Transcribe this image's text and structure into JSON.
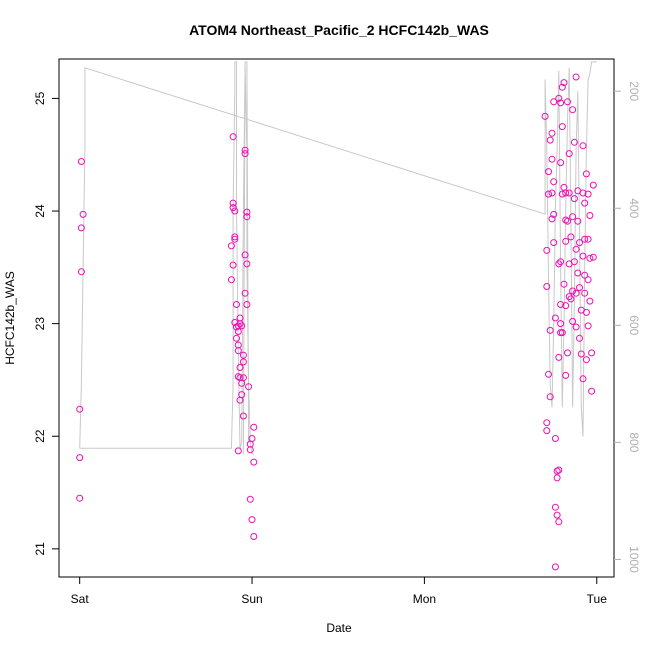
{
  "chart_data": {
    "type": "scatter",
    "title": "ATOM4 Northeast_Pacific_2 HCFC142b_WAS",
    "xlabel": "Date",
    "ylabel": "HCFC142b_WAS",
    "x_tick_labels": [
      "Sat",
      "Sun",
      "Mon",
      "Tue"
    ],
    "x_ticks_day": [
      0,
      1,
      2,
      3
    ],
    "xlim_day": [
      -0.12,
      3.1
    ],
    "ylim": [
      20.75,
      25.35
    ],
    "y_ticks": [
      21,
      22,
      23,
      24,
      25
    ],
    "right_axis": {
      "label_ticks": [
        200,
        400,
        600,
        800,
        1000
      ],
      "lim": [
        145,
        1030
      ],
      "color": "#b0b0b0"
    },
    "grid": false,
    "point_color": "#ee0fb4",
    "line_color": "#c8c8c8",
    "series": [
      {
        "kind": "points",
        "points": [
          [
            0.01,
            24.44
          ],
          [
            0.01,
            23.85
          ],
          [
            0.02,
            23.97
          ],
          [
            0.01,
            23.46
          ],
          [
            0.0,
            22.24
          ],
          [
            0.0,
            21.81
          ],
          [
            0.0,
            21.45
          ],
          [
            0.89,
            24.66
          ],
          [
            0.89,
            24.07
          ],
          [
            0.89,
            24.03
          ],
          [
            0.9,
            24.0
          ],
          [
            0.9,
            23.77
          ],
          [
            0.9,
            23.75
          ],
          [
            0.88,
            23.69
          ],
          [
            0.89,
            23.52
          ],
          [
            0.88,
            23.39
          ],
          [
            0.91,
            23.17
          ],
          [
            0.9,
            23.01
          ],
          [
            0.91,
            22.97
          ],
          [
            0.92,
            22.93
          ],
          [
            0.91,
            22.87
          ],
          [
            0.92,
            22.81
          ],
          [
            0.92,
            22.76
          ],
          [
            0.93,
            22.61
          ],
          [
            0.92,
            22.53
          ],
          [
            0.93,
            22.52
          ],
          [
            0.94,
            22.47
          ],
          [
            0.94,
            22.37
          ],
          [
            0.92,
            22.98
          ],
          [
            0.93,
            23.0
          ],
          [
            0.93,
            23.05
          ],
          [
            0.94,
            22.98
          ],
          [
            0.95,
            22.72
          ],
          [
            0.95,
            22.66
          ],
          [
            0.95,
            22.52
          ],
          [
            0.93,
            22.32
          ],
          [
            0.95,
            22.18
          ],
          [
            0.92,
            21.87
          ],
          [
            0.96,
            24.54
          ],
          [
            0.96,
            24.51
          ],
          [
            0.97,
            23.99
          ],
          [
            0.97,
            23.95
          ],
          [
            0.96,
            23.61
          ],
          [
            0.97,
            23.53
          ],
          [
            0.96,
            23.27
          ],
          [
            0.97,
            23.17
          ],
          [
            0.98,
            22.44
          ],
          [
            0.99,
            21.88
          ],
          [
            0.99,
            21.93
          ],
          [
            1.0,
            21.98
          ],
          [
            1.01,
            21.77
          ],
          [
            1.01,
            22.08
          ],
          [
            0.99,
            21.44
          ],
          [
            1.0,
            21.26
          ],
          [
            1.01,
            21.11
          ],
          [
            2.7,
            24.84
          ],
          [
            2.72,
            24.35
          ],
          [
            2.72,
            24.15
          ],
          [
            2.71,
            23.65
          ],
          [
            2.71,
            23.33
          ],
          [
            2.73,
            22.94
          ],
          [
            2.72,
            22.55
          ],
          [
            2.73,
            22.35
          ],
          [
            2.71,
            22.12
          ],
          [
            2.71,
            22.05
          ],
          [
            2.75,
            24.97
          ],
          [
            2.74,
            24.69
          ],
          [
            2.73,
            24.63
          ],
          [
            2.74,
            24.46
          ],
          [
            2.75,
            24.26
          ],
          [
            2.74,
            24.16
          ],
          [
            2.75,
            23.97
          ],
          [
            2.74,
            23.93
          ],
          [
            2.75,
            23.72
          ],
          [
            2.76,
            23.05
          ],
          [
            2.76,
            21.98
          ],
          [
            2.77,
            21.69
          ],
          [
            2.77,
            21.63
          ],
          [
            2.76,
            21.37
          ],
          [
            2.77,
            21.3
          ],
          [
            2.78,
            21.24
          ],
          [
            2.76,
            20.84
          ],
          [
            2.78,
            21.7
          ],
          [
            2.78,
            25.0
          ],
          [
            2.79,
            24.96
          ],
          [
            2.8,
            24.75
          ],
          [
            2.79,
            24.43
          ],
          [
            2.8,
            24.15
          ],
          [
            2.79,
            23.55
          ],
          [
            2.78,
            23.53
          ],
          [
            2.79,
            23.17
          ],
          [
            2.8,
            22.92
          ],
          [
            2.78,
            22.7
          ],
          [
            2.79,
            22.92
          ],
          [
            2.79,
            23.0
          ],
          [
            2.8,
            25.1
          ],
          [
            2.81,
            25.14
          ],
          [
            2.81,
            24.21
          ],
          [
            2.82,
            24.16
          ],
          [
            2.82,
            23.92
          ],
          [
            2.82,
            23.73
          ],
          [
            2.81,
            23.35
          ],
          [
            2.82,
            23.16
          ],
          [
            2.83,
            22.74
          ],
          [
            2.82,
            22.54
          ],
          [
            2.83,
            24.97
          ],
          [
            2.84,
            24.51
          ],
          [
            2.84,
            24.16
          ],
          [
            2.83,
            23.91
          ],
          [
            2.85,
            23.77
          ],
          [
            2.84,
            23.53
          ],
          [
            2.84,
            23.24
          ],
          [
            2.85,
            23.22
          ],
          [
            2.86,
            23.02
          ],
          [
            2.86,
            24.9
          ],
          [
            2.87,
            24.61
          ],
          [
            2.87,
            24.11
          ],
          [
            2.86,
            23.95
          ],
          [
            2.88,
            23.66
          ],
          [
            2.87,
            23.55
          ],
          [
            2.86,
            23.29
          ],
          [
            2.88,
            23.27
          ],
          [
            2.88,
            22.97
          ],
          [
            2.88,
            25.19
          ],
          [
            2.89,
            24.18
          ],
          [
            2.89,
            23.91
          ],
          [
            2.9,
            23.72
          ],
          [
            2.89,
            23.45
          ],
          [
            2.9,
            23.32
          ],
          [
            2.91,
            23.12
          ],
          [
            2.9,
            22.87
          ],
          [
            2.91,
            22.73
          ],
          [
            2.92,
            22.51
          ],
          [
            2.92,
            24.58
          ],
          [
            2.92,
            24.16
          ],
          [
            2.93,
            24.07
          ],
          [
            2.93,
            23.75
          ],
          [
            2.92,
            23.6
          ],
          [
            2.93,
            23.43
          ],
          [
            2.93,
            23.27
          ],
          [
            2.94,
            23.1
          ],
          [
            2.94,
            22.68
          ],
          [
            2.94,
            24.33
          ],
          [
            2.95,
            24.15
          ],
          [
            2.96,
            23.96
          ],
          [
            2.95,
            23.75
          ],
          [
            2.96,
            23.58
          ],
          [
            2.95,
            23.39
          ],
          [
            2.96,
            23.2
          ],
          [
            2.95,
            22.98
          ],
          [
            2.97,
            22.74
          ],
          [
            2.97,
            22.4
          ],
          [
            2.98,
            24.23
          ],
          [
            2.98,
            23.59
          ]
        ]
      },
      {
        "kind": "line",
        "y_axis": "right",
        "points": [
          [
            0.0,
            810
          ],
          [
            0.01,
            700
          ],
          [
            0.02,
            500
          ],
          [
            0.03,
            300
          ],
          [
            0.03,
            160
          ],
          [
            2.7,
            410
          ],
          [
            2.7,
            180
          ],
          [
            2.71,
            300
          ],
          [
            2.72,
            520
          ],
          [
            2.73,
            700
          ],
          [
            2.74,
            740
          ],
          [
            2.75,
            600
          ],
          [
            2.76,
            400
          ],
          [
            2.77,
            300
          ],
          [
            2.78,
            165
          ],
          [
            2.79,
            500
          ],
          [
            2.8,
            740
          ],
          [
            2.81,
            600
          ],
          [
            2.82,
            400
          ],
          [
            2.83,
            250
          ],
          [
            2.84,
            160
          ],
          [
            2.85,
            420
          ],
          [
            2.86,
            740
          ],
          [
            2.87,
            560
          ],
          [
            2.88,
            300
          ],
          [
            2.89,
            200
          ],
          [
            2.9,
            450
          ],
          [
            2.91,
            740
          ],
          [
            2.92,
            790
          ],
          [
            2.93,
            500
          ],
          [
            2.94,
            300
          ],
          [
            2.95,
            180
          ],
          [
            2.96,
            170
          ],
          [
            2.97,
            150
          ],
          [
            3.0,
            150
          ]
        ]
      },
      {
        "kind": "line",
        "y_axis": "right",
        "points": [
          [
            0.0,
            810
          ],
          [
            0.88,
            810
          ],
          [
            0.89,
            700
          ],
          [
            0.89,
            400
          ],
          [
            0.9,
            200
          ],
          [
            0.9,
            150
          ],
          [
            0.91,
            150
          ],
          [
            0.91,
            400
          ],
          [
            0.92,
            650
          ],
          [
            0.93,
            810
          ],
          [
            0.94,
            800
          ],
          [
            0.95,
            400
          ],
          [
            0.96,
            160
          ],
          [
            0.97,
            300
          ],
          [
            0.97,
            500
          ],
          [
            0.98,
            700
          ],
          [
            0.99,
            800
          ],
          [
            1.0,
            820
          ],
          [
            1.01,
            820
          ]
        ]
      },
      {
        "kind": "line",
        "y_axis": "right",
        "points": [
          [
            0.95,
            820
          ],
          [
            0.96,
            150
          ],
          [
            0.97,
            150
          ],
          [
            0.98,
            800
          ]
        ]
      }
    ]
  }
}
